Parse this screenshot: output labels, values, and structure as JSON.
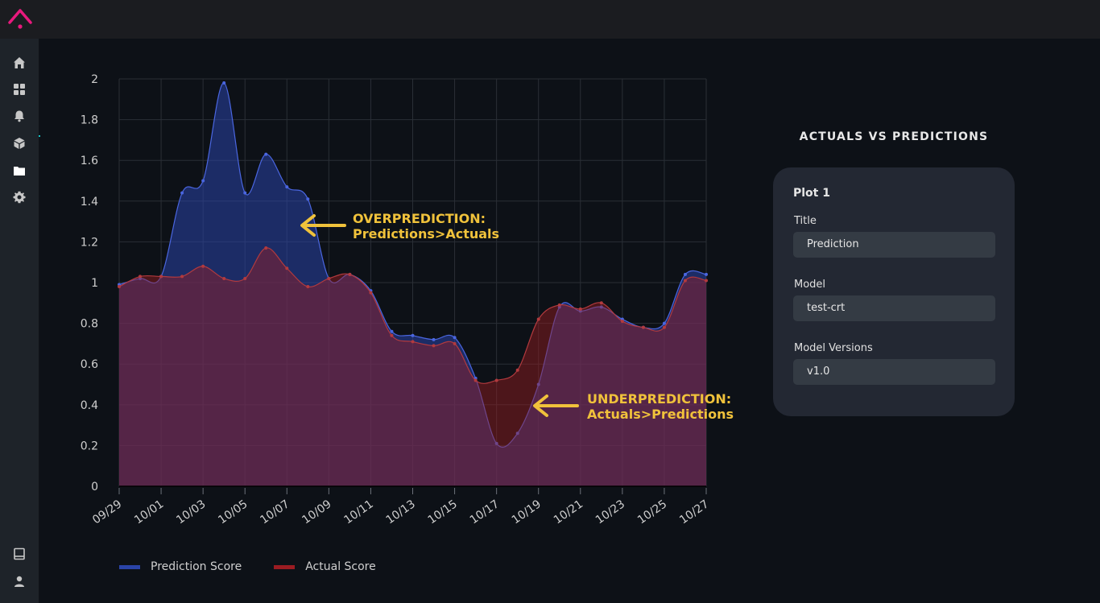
{
  "nav": {
    "items": [
      {
        "icon": "home-icon",
        "active": false
      },
      {
        "icon": "dashboard-icon",
        "active": false
      },
      {
        "icon": "bell-icon",
        "active": false
      },
      {
        "icon": "cube-icon",
        "active": false
      },
      {
        "icon": "folder-icon",
        "active": true
      },
      {
        "icon": "gear-icon",
        "active": false
      }
    ],
    "bottom": [
      {
        "icon": "book-icon"
      },
      {
        "icon": "user-icon"
      }
    ]
  },
  "colors": {
    "accent": "#e8197d",
    "prediction": "#2a44a8",
    "actual": "#9b1c22",
    "annotation": "#f0c23b"
  },
  "annotations": {
    "over_line1": "OVERPREDICTION:",
    "over_line2": "Predictions>Actuals",
    "under_line1": "UNDERPREDICTION:",
    "under_line2": "Actuals>Predictions"
  },
  "legend": {
    "prediction": "Prediction Score",
    "actual": "Actual Score"
  },
  "chart_data": {
    "type": "area",
    "title": "",
    "xlabel": "",
    "ylabel": "",
    "ylim": [
      0,
      2
    ],
    "y_ticks": [
      "0",
      "0.2",
      "0.4",
      "0.6",
      "0.8",
      "1",
      "1.2",
      "1.4",
      "1.6",
      "1.8",
      "2"
    ],
    "x_tick_labels": [
      "09/29",
      "10/01",
      "10/03",
      "10/05",
      "10/07",
      "10/09",
      "10/11",
      "10/13",
      "10/15",
      "10/17",
      "10/19",
      "10/21",
      "10/23",
      "10/25",
      "10/27"
    ],
    "grid": true,
    "legend_position": "bottom-left",
    "x": [
      "09/29",
      "09/30",
      "10/01",
      "10/02",
      "10/03",
      "10/04",
      "10/05",
      "10/06",
      "10/07",
      "10/08",
      "10/09",
      "10/10",
      "10/11",
      "10/12",
      "10/13",
      "10/14",
      "10/15",
      "10/16",
      "10/17",
      "10/18",
      "10/19",
      "10/20",
      "10/21",
      "10/22",
      "10/23",
      "10/24",
      "10/25",
      "10/26",
      "10/27"
    ],
    "series": [
      {
        "name": "Prediction Score",
        "values": [
          0.99,
          1.02,
          1.03,
          1.44,
          1.5,
          1.98,
          1.44,
          1.63,
          1.47,
          1.41,
          1.02,
          1.04,
          0.96,
          0.76,
          0.74,
          0.72,
          0.73,
          0.53,
          0.21,
          0.26,
          0.5,
          0.88,
          0.86,
          0.88,
          0.82,
          0.78,
          0.8,
          1.04,
          1.04
        ]
      },
      {
        "name": "Actual Score",
        "values": [
          0.98,
          1.03,
          1.03,
          1.03,
          1.08,
          1.02,
          1.02,
          1.17,
          1.07,
          0.98,
          1.02,
          1.04,
          0.95,
          0.74,
          0.71,
          0.69,
          0.7,
          0.52,
          0.52,
          0.57,
          0.82,
          0.89,
          0.87,
          0.9,
          0.81,
          0.78,
          0.78,
          1.01,
          1.01
        ]
      }
    ]
  },
  "panel": {
    "heading": "ACTUALS VS PREDICTIONS",
    "plot_title": "Plot 1",
    "title_label": "Title",
    "title_value": "Prediction",
    "model_label": "Model",
    "model_value": "test-crt",
    "versions_label": "Model Versions",
    "versions_value": "v1.0"
  }
}
